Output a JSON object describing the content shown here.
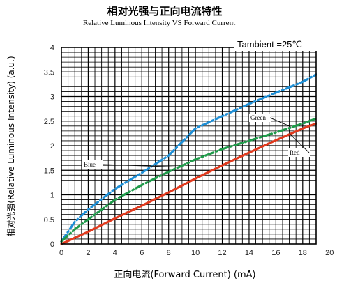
{
  "chart_data": {
    "type": "line",
    "title": "相对光强与正向电流特性",
    "subtitle": "Relative Luminous Intensity VS Forward Current",
    "xlabel": "正向电流(Forward Current) (mA)",
    "ylabel": "相对光强(Relative Luminous Intensity) (a.u.)",
    "annotation": "Tambient =25℃",
    "xlim": [
      0,
      19
    ],
    "ylim": [
      0,
      4
    ],
    "x_ticks": [
      "0",
      "2",
      "4",
      "6",
      "8",
      "10",
      "12",
      "14",
      "16",
      "18",
      "20"
    ],
    "y_ticks": [
      "0",
      "0.5",
      "1",
      "1.5",
      "2",
      "2.5",
      "3",
      "3.5",
      "4"
    ],
    "grid": true,
    "series": [
      {
        "name": "Blue",
        "color": "#1e8fd6",
        "style": "dashdot",
        "x": [
          0,
          1,
          2,
          4,
          6,
          8,
          10,
          12,
          14,
          16,
          18,
          19
        ],
        "y": [
          0.05,
          0.45,
          0.7,
          1.12,
          1.45,
          1.8,
          2.35,
          2.6,
          2.85,
          3.08,
          3.3,
          3.45
        ]
      },
      {
        "name": "Green",
        "color": "#1f9a4a",
        "style": "dashdot",
        "x": [
          0,
          1,
          2,
          4,
          6,
          8,
          10,
          12,
          14,
          16,
          18,
          19
        ],
        "y": [
          0.05,
          0.3,
          0.5,
          0.9,
          1.2,
          1.47,
          1.72,
          1.93,
          2.1,
          2.27,
          2.45,
          2.55
        ]
      },
      {
        "name": "Red",
        "color": "#e03a1e",
        "style": "solid",
        "x": [
          0,
          2,
          4,
          6,
          8,
          10,
          12,
          14,
          16,
          18,
          19
        ],
        "y": [
          0.0,
          0.25,
          0.52,
          0.78,
          1.05,
          1.33,
          1.6,
          1.86,
          2.11,
          2.35,
          2.45
        ]
      }
    ]
  }
}
